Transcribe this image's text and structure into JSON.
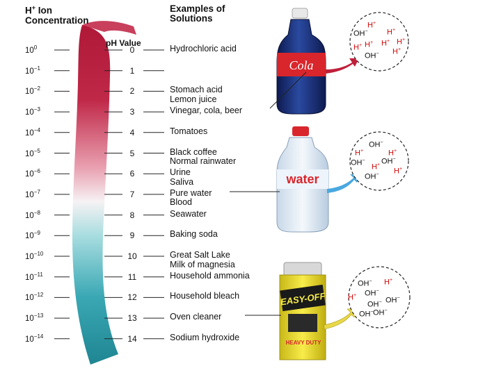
{
  "header": {
    "conc_line1": "H",
    "conc_sup": "+",
    "conc_line1_rest": " Ion",
    "conc_line2": "Concentration",
    "ex_line1": "Examples of",
    "ex_line2": "Solutions",
    "ph_label": "pH Value"
  },
  "scale": [
    {
      "exp": "0",
      "ph": "0",
      "solutions": [
        "Hydrochloric acid"
      ]
    },
    {
      "exp": "−1",
      "ph": "1",
      "solutions": []
    },
    {
      "exp": "−2",
      "ph": "2",
      "solutions": [
        "Stomach acid",
        "Lemon juice"
      ]
    },
    {
      "exp": "−3",
      "ph": "3",
      "solutions": [
        "Vinegar, cola, beer"
      ]
    },
    {
      "exp": "−4",
      "ph": "4",
      "solutions": [
        "Tomatoes"
      ]
    },
    {
      "exp": "−5",
      "ph": "5",
      "solutions": [
        "Black coffee",
        "Normal rainwater"
      ]
    },
    {
      "exp": "−6",
      "ph": "6",
      "solutions": [
        "Urine",
        "Saliva"
      ]
    },
    {
      "exp": "−7",
      "ph": "7",
      "solutions": [
        "Pure water",
        "Blood"
      ]
    },
    {
      "exp": "−8",
      "ph": "8",
      "solutions": [
        "Seawater"
      ]
    },
    {
      "exp": "−9",
      "ph": "9",
      "solutions": [
        "Baking soda"
      ]
    },
    {
      "exp": "−10",
      "ph": "10",
      "solutions": [
        "Great Salt Lake",
        "Milk of magnesia"
      ]
    },
    {
      "exp": "−11",
      "ph": "11",
      "solutions": [
        "Household ammonia"
      ]
    },
    {
      "exp": "−12",
      "ph": "12",
      "solutions": [
        "Household bleach"
      ]
    },
    {
      "exp": "−13",
      "ph": "13",
      "solutions": [
        "Oven cleaner"
      ]
    },
    {
      "exp": "−14",
      "ph": "14",
      "solutions": [
        "Sodium hydroxide"
      ]
    }
  ],
  "conc_base": "10",
  "products": {
    "cola_label": "Cola",
    "water_label": "water",
    "easyoff_label": "EASY-OFF",
    "easyoff_sub": "HEAVY DUTY"
  },
  "ions": {
    "h": "H",
    "oh": "OH",
    "plus": "+",
    "minus": "−"
  },
  "colors": {
    "acid": "#b8203e",
    "neutral": "#f4f0f2",
    "base": "#2a9aa6",
    "ion_h": "#d10a0a",
    "arrow_acid": "#c0203a",
    "arrow_water": "#4aa8e0",
    "arrow_base": "#e8d84a",
    "cola_liquid": "#1a2a6a",
    "cap_red": "#d8262c",
    "can_yellow": "#f2e23a"
  }
}
